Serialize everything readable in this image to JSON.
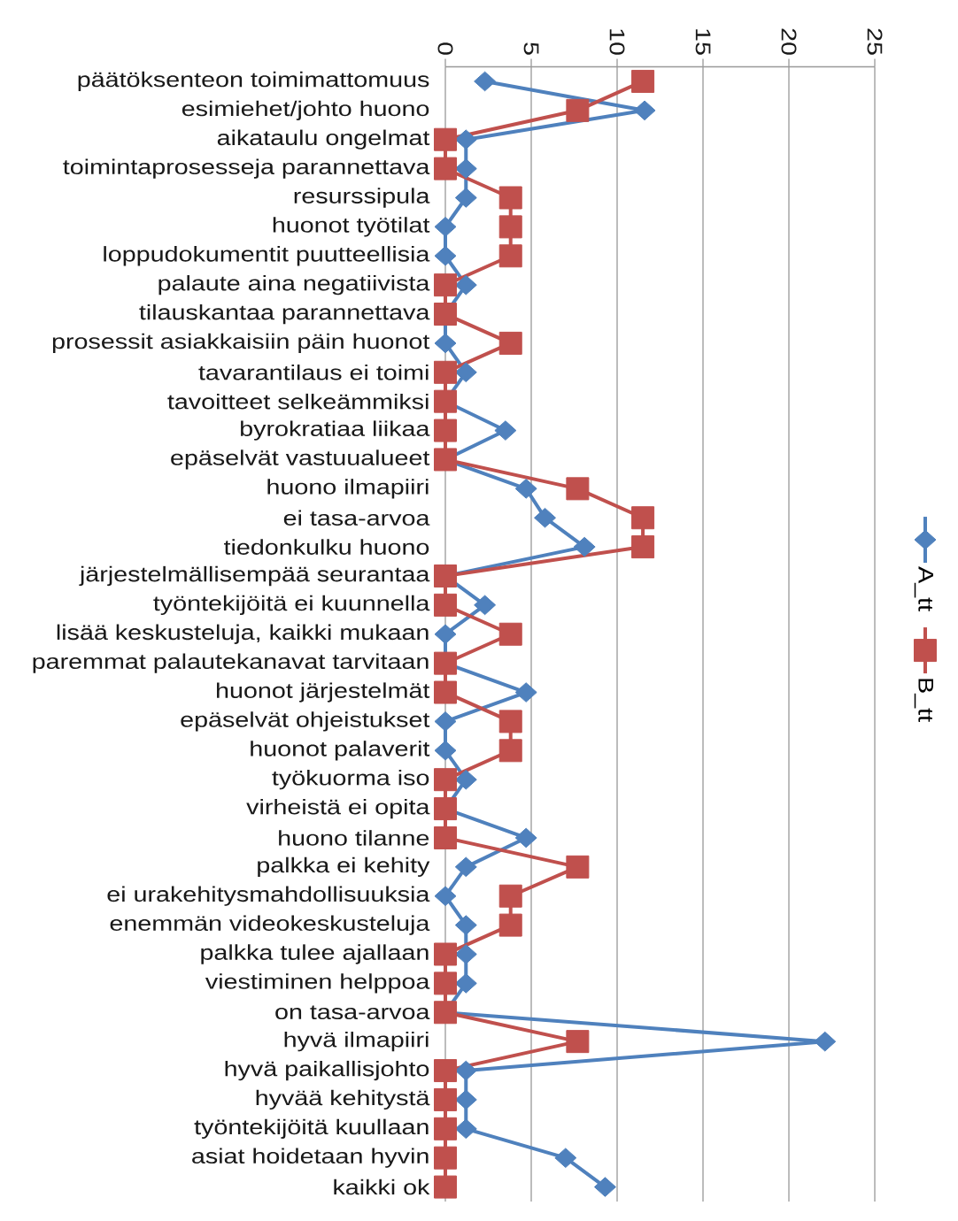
{
  "chart_data": {
    "type": "line",
    "orientation": "horizontal",
    "categories": [
      "päätöksenteon toimimattomuus",
      "esimiehet/johto huono",
      "aikataulu ongelmat",
      "toimintaprosesseja parannettava",
      "resurssipula",
      "huonot työtilat",
      "loppudokumentit puutteellisia",
      "palaute aina negatiivista",
      "tilauskantaa parannettava",
      "prosessit asiakkaisiin päin huonot",
      "tavarantilaus ei toimi",
      "tavoitteet selkeämmiksi",
      "byrokratiaa liikaa",
      "epäselvät vastuualueet",
      "huono ilmapiiri",
      "ei tasa-arvoa",
      "tiedonkulku huono",
      "järjestelmällisempää seurantaa",
      "työntekijöitä ei kuunnella",
      "lisää keskusteluja, kaikki mukaan",
      "paremmat palautekanavat tarvitaan",
      "huonot järjestelmät",
      "epäselvät ohjeistukset",
      "huonot palaverit",
      "työkuorma iso",
      "virheistä ei opita",
      "huono tilanne",
      "palkka ei kehity",
      "ei urakehitysmahdollisuuksia",
      "enemmän videokeskusteluja",
      "palkka tulee ajallaan",
      "viestiminen helppoa",
      "on tasa-arvoa",
      "hyvä ilmapiiri",
      "hyvä paikallisjohto",
      "hyvää kehitystä",
      "työntekijöitä kuullaan",
      "asiat hoidetaan hyvin",
      "kaikki ok"
    ],
    "series": [
      {
        "name": "A_tt",
        "color": "#4F81BD",
        "marker": "diamond",
        "values": [
          2.3,
          11.6,
          1.2,
          1.2,
          1.2,
          0,
          0,
          1.2,
          0,
          0,
          1.2,
          0,
          3.5,
          0,
          4.7,
          5.8,
          8.1,
          0,
          2.3,
          0,
          0,
          4.7,
          0,
          0,
          1.2,
          0,
          4.7,
          1.2,
          0,
          1.2,
          1.2,
          1.2,
          0,
          22.1,
          1.2,
          1.2,
          1.2,
          7.0,
          9.3
        ]
      },
      {
        "name": "B_tt",
        "color": "#C0504D",
        "marker": "square",
        "values": [
          11.5,
          7.7,
          0,
          0,
          3.8,
          3.8,
          3.8,
          0,
          0,
          3.8,
          0,
          0,
          0,
          0,
          7.7,
          11.5,
          11.5,
          0,
          0,
          3.8,
          0,
          0,
          3.8,
          3.8,
          0,
          0,
          0,
          7.7,
          3.8,
          3.8,
          0,
          0,
          0,
          7.7,
          0,
          0,
          0,
          0,
          0
        ]
      }
    ],
    "xlim": [
      0,
      25
    ],
    "xticks": [
      0,
      5,
      10,
      15,
      20,
      25
    ],
    "grid": "x",
    "legend": "right",
    "line_style": "solid"
  }
}
